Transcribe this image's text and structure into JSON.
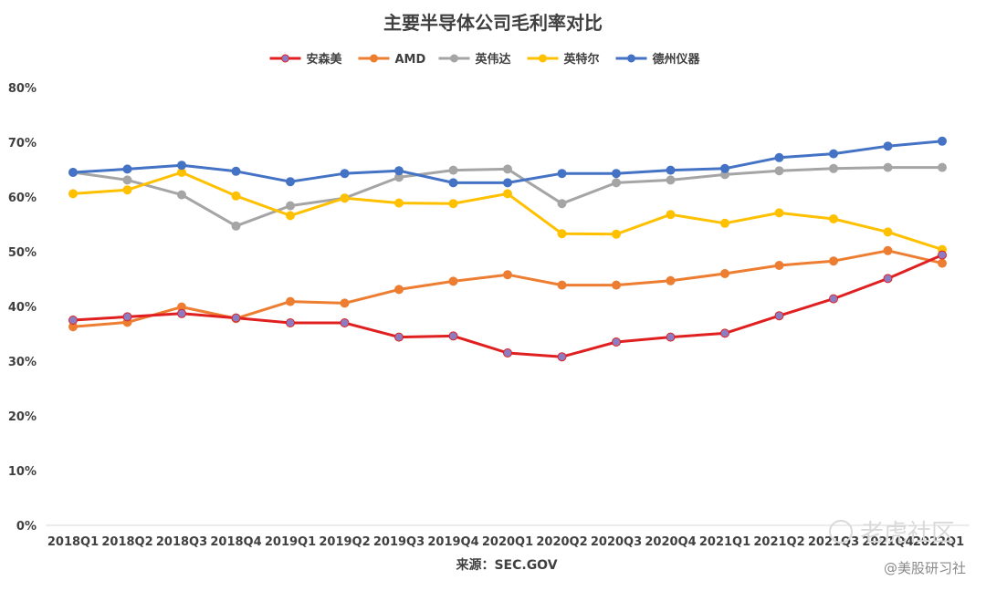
{
  "chart_data": {
    "type": "line",
    "title": "主要半导体公司毛利率对比",
    "categories": [
      "2018Q1",
      "2018Q2",
      "2018Q3",
      "2018Q4",
      "2019Q1",
      "2019Q2",
      "2019Q3",
      "2019Q4",
      "2020Q1",
      "2020Q2",
      "2020Q3",
      "2020Q4",
      "2021Q1",
      "2021Q2",
      "2021Q3",
      "2021Q4",
      "2022Q1"
    ],
    "y_ticks": [
      "0%",
      "10%",
      "20%",
      "30%",
      "40%",
      "50%",
      "60%",
      "70%",
      "80%"
    ],
    "ylim": [
      0,
      80
    ],
    "grid": false,
    "legend_position": "top",
    "series": [
      {
        "name": "安森美",
        "color": "#e02020",
        "marker_fill": "#8e7cc3",
        "values": [
          37.5,
          38.1,
          38.7,
          37.9,
          37.0,
          37.0,
          34.4,
          34.6,
          31.5,
          30.8,
          33.5,
          34.4,
          35.1,
          38.3,
          41.4,
          45.1,
          49.4
        ]
      },
      {
        "name": "AMD",
        "color": "#ed7d31",
        "values": [
          36.3,
          37.1,
          39.9,
          37.8,
          40.9,
          40.6,
          43.1,
          44.6,
          45.8,
          43.9,
          43.9,
          44.7,
          46.0,
          47.5,
          48.3,
          50.2,
          47.9
        ]
      },
      {
        "name": "英伟达",
        "color": "#a5a5a5",
        "values": [
          64.5,
          63.1,
          60.4,
          54.7,
          58.4,
          59.8,
          63.6,
          64.9,
          65.1,
          58.8,
          62.6,
          63.1,
          64.1,
          64.8,
          65.2,
          65.4,
          65.4
        ]
      },
      {
        "name": "英特尔",
        "color": "#ffc000",
        "values": [
          60.6,
          61.3,
          64.5,
          60.2,
          56.6,
          59.8,
          58.9,
          58.8,
          60.6,
          53.3,
          53.2,
          56.8,
          55.2,
          57.1,
          56.0,
          53.6,
          50.4
        ]
      },
      {
        "name": "德州仪器",
        "color": "#4472c4",
        "values": [
          64.5,
          65.1,
          65.8,
          64.7,
          62.8,
          64.3,
          64.8,
          62.6,
          62.6,
          64.3,
          64.3,
          64.9,
          65.2,
          67.2,
          67.9,
          69.3,
          70.2
        ]
      }
    ]
  },
  "source": "来源：SEC.GOV",
  "watermark": {
    "logo_text": "老虎社区",
    "label": "@美股研习社"
  }
}
